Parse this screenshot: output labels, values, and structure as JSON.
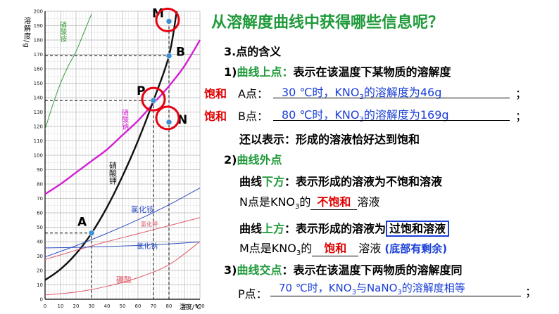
{
  "chart_data": {
    "type": "line",
    "ylabel": "溶解度/g",
    "xlabel": "温度/℃",
    "xlim": [
      0,
      100
    ],
    "ylim": [
      0,
      200
    ],
    "x_ticks": [
      0,
      10,
      20,
      30,
      40,
      50,
      60,
      70,
      80,
      90,
      100
    ],
    "y_ticks": [
      0,
      10,
      20,
      30,
      40,
      50,
      60,
      70,
      80,
      90,
      100,
      110,
      120,
      130,
      140,
      150,
      160,
      170,
      180,
      190,
      200
    ],
    "grid": true,
    "series": [
      {
        "name": "硝酸铵",
        "color": "#3a9a3a",
        "x": [
          0,
          5,
          10,
          15,
          20,
          25,
          30
        ],
        "y": [
          118,
          135,
          150,
          162,
          172,
          185,
          198
        ]
      },
      {
        "name": "硝酸钠",
        "color": "#d21fd2",
        "x": [
          0,
          10,
          20,
          30,
          40,
          50,
          60,
          70,
          80,
          90,
          100
        ],
        "y": [
          73,
          80,
          88,
          96,
          104,
          114,
          124,
          136,
          148,
          162,
          180
        ]
      },
      {
        "name": "硝酸钾",
        "color": "#111111",
        "x": [
          0,
          10,
          20,
          30,
          40,
          50,
          60,
          70,
          80,
          85
        ],
        "y": [
          13.3,
          20.9,
          31.6,
          45.8,
          63.9,
          85.5,
          110,
          138,
          169,
          200
        ]
      },
      {
        "name": "氯化铵",
        "color": "#3050c0",
        "x": [
          0,
          20,
          40,
          60,
          80,
          100
        ],
        "y": [
          29.4,
          37.2,
          45.8,
          55.2,
          65.6,
          77.3
        ]
      },
      {
        "name": "氯化钾",
        "color": "#e05a6a",
        "x": [
          0,
          20,
          40,
          60,
          80,
          100
        ],
        "y": [
          27.6,
          34,
          40,
          45.5,
          51.1,
          56.7
        ]
      },
      {
        "name": "氯化钠",
        "color": "#3050c0",
        "x": [
          0,
          20,
          40,
          60,
          80,
          100
        ],
        "y": [
          35.7,
          36,
          36.6,
          37.3,
          38.4,
          39.8
        ]
      },
      {
        "name": "硼酸",
        "color": "#e05a6a",
        "x": [
          0,
          20,
          40,
          60,
          80,
          100
        ],
        "y": [
          3,
          5,
          9,
          15,
          24,
          40
        ]
      }
    ],
    "points": [
      {
        "label": "A",
        "x": 30,
        "y": 46
      },
      {
        "label": "B",
        "x": 80,
        "y": 169
      },
      {
        "label": "P",
        "x": 70,
        "y": 138
      },
      {
        "label": "M",
        "x": 80,
        "y": 193
      },
      {
        "label": "N",
        "x": 80,
        "y": 123
      }
    ],
    "highlight_colors": {
      "marker": "#3a8fd6",
      "circle": "#e60012"
    }
  },
  "title": "从溶解度曲线中获得哪些信息呢？",
  "s3": "3.点的含义",
  "s1_num": "1)",
  "s1_key": "曲线上点：",
  "s1_text": "表示在该温度下某物质的溶解度",
  "sat_a": "饱和",
  "a_label": "A点：",
  "a_ans": "30 ℃时，KNO",
  "a_ans_tail": "的溶解度为46g",
  "semicolon": "；",
  "sat_b": "饱和",
  "b_label": "B点：",
  "b_ans": "80 ℃时，KNO",
  "b_ans_tail": "的溶解度为169g",
  "also": "还以表示：形成的溶液恰好达到饱和",
  "s2_num": "2)",
  "s2_key": "曲线外点",
  "below_pre": "曲线",
  "below_key": "下方",
  "below_text": "：表示形成的溶液为不饱和溶液",
  "n_pre": "N点是KNO",
  "n_mid": "的",
  "n_ans": "不饱和",
  "n_post": "溶液",
  "above_pre": "曲线",
  "above_key": "上方",
  "above_text": "：表示形成的溶液为",
  "above_box": "过饱和溶液",
  "m_pre": "M点是KNO",
  "m_mid": "的",
  "m_ans": "饱和",
  "m_post": "溶液",
  "m_note": "(底部有剩余)",
  "s3_num": "3)",
  "s3_key": "曲线交点",
  "s3_text": "：表示在该温度下两物质的溶解度同",
  "p_label": "P点：",
  "p_ans": "70 ℃时，KNO",
  "p_ans_mid": "与NaNO",
  "p_ans_tail": "的溶解度相等",
  "p_semicolon": "；",
  "sub3": "3"
}
